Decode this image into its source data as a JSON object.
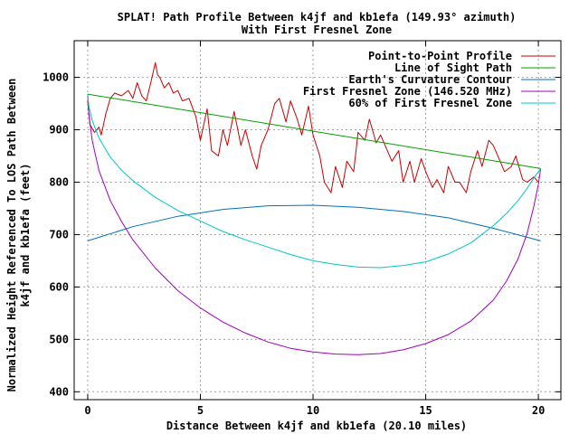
{
  "chart_data": {
    "type": "line",
    "title_line1": "SPLAT! Path Profile Between k4jf and kb1efa (149.93° azimuth)",
    "title_line2": "With First Fresnel Zone",
    "xlabel": "Distance Between k4jf and kb1efa (20.10 miles)",
    "ylabel_line1": "Normalized Height Referenced To LOS Path Between",
    "ylabel_line2": "k4jf and kb1efa (feet)",
    "xlim": [
      -0.6,
      21
    ],
    "ylim": [
      385,
      1070
    ],
    "xticks": [
      0,
      5,
      10,
      15,
      20
    ],
    "xtick_labels": [
      "0",
      "5",
      "10",
      "15",
      "20"
    ],
    "yticks": [
      400,
      500,
      600,
      700,
      800,
      900,
      1000
    ],
    "ytick_labels": [
      "400",
      "500",
      "600",
      "700",
      "800",
      "900",
      "1000"
    ],
    "grid": true,
    "legend_position": "top-right",
    "series": [
      {
        "name": "Point-to-Point Profile",
        "color": "#cc0000",
        "x": [
          0,
          0.1,
          0.3,
          0.5,
          0.6,
          0.8,
          1.0,
          1.2,
          1.5,
          1.8,
          2.0,
          2.2,
          2.4,
          2.6,
          2.8,
          3.0,
          3.1,
          3.2,
          3.4,
          3.6,
          3.8,
          4.0,
          4.2,
          4.5,
          4.8,
          5.0,
          5.3,
          5.5,
          5.8,
          6.0,
          6.2,
          6.5,
          6.8,
          7.0,
          7.3,
          7.5,
          7.7,
          8.0,
          8.3,
          8.5,
          8.8,
          9.0,
          9.3,
          9.5,
          9.8,
          10.0,
          10.3,
          10.5,
          10.8,
          11.0,
          11.3,
          11.5,
          11.8,
          12.0,
          12.3,
          12.5,
          12.8,
          13.0,
          13.3,
          13.5,
          13.8,
          14.0,
          14.3,
          14.5,
          14.8,
          15.0,
          15.3,
          15.5,
          15.8,
          16.0,
          16.3,
          16.5,
          16.8,
          17.0,
          17.3,
          17.5,
          17.8,
          18.0,
          18.3,
          18.5,
          18.8,
          19.0,
          19.3,
          19.5,
          19.8,
          20.0
        ],
        "y": [
          955,
          910,
          895,
          905,
          890,
          930,
          960,
          970,
          965,
          975,
          960,
          990,
          965,
          955,
          990,
          1028,
          1005,
          1000,
          980,
          990,
          970,
          975,
          955,
          960,
          925,
          880,
          940,
          860,
          850,
          900,
          870,
          935,
          870,
          900,
          850,
          825,
          870,
          900,
          950,
          960,
          915,
          955,
          920,
          890,
          945,
          890,
          850,
          800,
          780,
          830,
          790,
          840,
          820,
          895,
          880,
          920,
          875,
          890,
          860,
          840,
          860,
          800,
          840,
          800,
          845,
          820,
          790,
          805,
          780,
          830,
          800,
          800,
          780,
          820,
          860,
          830,
          880,
          870,
          840,
          820,
          830,
          850,
          805,
          800,
          810,
          800
        ]
      },
      {
        "name": "Line of Sight Path",
        "color": "#00a000",
        "x": [
          0,
          20.1
        ],
        "y": [
          968,
          826
        ]
      },
      {
        "name": "Earth's Curvature Contour",
        "color": "#0070c0",
        "x": [
          0,
          2,
          4,
          6,
          8,
          10,
          12,
          14,
          16,
          18,
          20.1
        ],
        "y": [
          688,
          715,
          735,
          748,
          755,
          756,
          752,
          744,
          732,
          712,
          688
        ]
      },
      {
        "name": "First Fresnel Zone (146.520 MHz)",
        "color": "#a000c0",
        "x": [
          0,
          0.05,
          0.2,
          0.5,
          1,
          1.5,
          2,
          3,
          4,
          5,
          6,
          7,
          8,
          9,
          10,
          11,
          12,
          13,
          14,
          15,
          16,
          17,
          18,
          18.6,
          19.1,
          19.5,
          19.8,
          20.0,
          20.1
        ],
        "y": [
          968,
          930,
          880,
          822,
          765,
          725,
          690,
          636,
          593,
          560,
          533,
          512,
          495,
          483,
          476,
          472,
          471,
          473,
          480,
          492,
          509,
          535,
          575,
          612,
          654,
          702,
          754,
          796,
          826
        ]
      },
      {
        "name": "60% of First Fresnel Zone",
        "color": "#00c8c8",
        "x": [
          0,
          0.05,
          0.2,
          0.5,
          1,
          1.5,
          2,
          3,
          4,
          5,
          6,
          7,
          8,
          9,
          10,
          11,
          12,
          13,
          14,
          15,
          16,
          17,
          18,
          18.6,
          19.1,
          19.5,
          19.8,
          20.0,
          20.1
        ],
        "y": [
          968,
          945,
          918,
          884,
          848,
          823,
          803,
          771,
          746,
          726,
          706,
          690,
          676,
          662,
          650,
          643,
          638,
          637,
          641,
          648,
          663,
          684,
          717,
          741,
          765,
          788,
          808,
          820,
          826
        ]
      }
    ]
  }
}
